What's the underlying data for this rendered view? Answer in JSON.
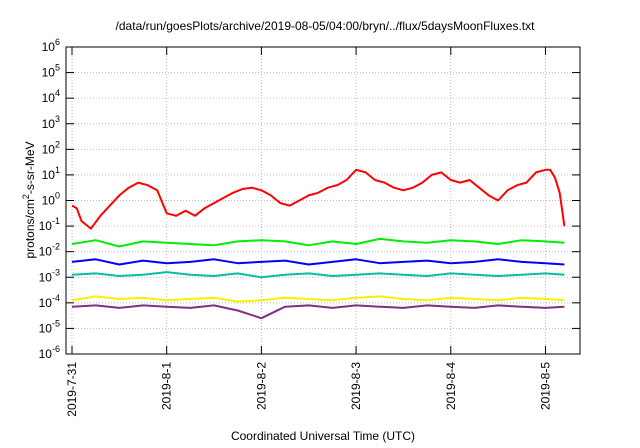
{
  "chart_data": {
    "type": "line",
    "title": "/data/run/goesPlots/archive/2019-08-05/04:00/bryn/../flux/5daysMoonFluxes.txt",
    "xlabel": "Coordinated Universal Time (UTC)",
    "ylabel": {
      "pre": "protons/cm",
      "sup": "2",
      "post": "-s-sr-MeV"
    },
    "x_ticks": [
      "2019-7-31",
      "2019-8-1",
      "2019-8-2",
      "2019-8-3",
      "2019-8-4",
      "2019-8-5"
    ],
    "x_range_days": [
      0,
      5.2
    ],
    "y_scale": "log",
    "y_ticks": [
      {
        "base": "10",
        "exp": "6"
      },
      {
        "base": "10",
        "exp": "5"
      },
      {
        "base": "10",
        "exp": "4"
      },
      {
        "base": "10",
        "exp": "3"
      },
      {
        "base": "10",
        "exp": "2"
      },
      {
        "base": "10",
        "exp": "1"
      },
      {
        "base": "10",
        "exp": "0"
      },
      {
        "base": "10",
        "exp": "-1"
      },
      {
        "base": "10",
        "exp": "-2"
      },
      {
        "base": "10",
        "exp": "-3"
      },
      {
        "base": "10",
        "exp": "-4"
      },
      {
        "base": "10",
        "exp": "-5"
      },
      {
        "base": "10",
        "exp": "-6"
      }
    ],
    "y_log_range": [
      -6,
      6
    ],
    "grid": true,
    "series": [
      {
        "color": "#ff0000",
        "x": [
          0,
          0.05,
          0.1,
          0.2,
          0.3,
          0.4,
          0.5,
          0.6,
          0.7,
          0.8,
          0.9,
          1.0,
          1.1,
          1.2,
          1.3,
          1.4,
          1.5,
          1.6,
          1.7,
          1.8,
          1.9,
          2.0,
          2.1,
          2.2,
          2.3,
          2.4,
          2.5,
          2.6,
          2.7,
          2.8,
          2.9,
          3.0,
          3.1,
          3.2,
          3.3,
          3.4,
          3.5,
          3.6,
          3.7,
          3.8,
          3.9,
          4.0,
          4.1,
          4.2,
          4.3,
          4.4,
          4.5,
          4.6,
          4.7,
          4.8,
          4.9,
          5.0,
          5.05,
          5.1,
          5.15,
          5.2
        ],
        "logy": [
          -0.2,
          -0.3,
          -0.8,
          -1.1,
          -0.6,
          -0.2,
          0.2,
          0.5,
          0.7,
          0.6,
          0.4,
          -0.5,
          -0.6,
          -0.4,
          -0.6,
          -0.3,
          -0.1,
          0.1,
          0.3,
          0.45,
          0.5,
          0.4,
          0.2,
          -0.1,
          -0.2,
          0.0,
          0.2,
          0.3,
          0.5,
          0.6,
          0.8,
          1.2,
          1.1,
          0.8,
          0.7,
          0.5,
          0.4,
          0.5,
          0.7,
          1.0,
          1.1,
          0.8,
          0.7,
          0.8,
          0.5,
          0.2,
          0.0,
          0.4,
          0.6,
          0.7,
          1.1,
          1.2,
          1.2,
          0.9,
          0.3,
          -1.0
        ]
      },
      {
        "color": "#00ee00",
        "x": [
          0,
          0.25,
          0.5,
          0.75,
          1.0,
          1.25,
          1.5,
          1.75,
          2.0,
          2.25,
          2.5,
          2.75,
          3.0,
          3.25,
          3.5,
          3.75,
          4.0,
          4.25,
          4.5,
          4.75,
          5.0,
          5.2
        ],
        "logy": [
          -1.7,
          -1.55,
          -1.8,
          -1.6,
          -1.65,
          -1.7,
          -1.75,
          -1.6,
          -1.55,
          -1.6,
          -1.75,
          -1.6,
          -1.7,
          -1.5,
          -1.6,
          -1.65,
          -1.55,
          -1.6,
          -1.7,
          -1.55,
          -1.6,
          -1.65
        ]
      },
      {
        "color": "#0000ff",
        "x": [
          0,
          0.25,
          0.5,
          0.75,
          1.0,
          1.25,
          1.5,
          1.75,
          2.0,
          2.25,
          2.5,
          2.75,
          3.0,
          3.25,
          3.5,
          3.75,
          4.0,
          4.25,
          4.5,
          4.75,
          5.0,
          5.2
        ],
        "logy": [
          -2.4,
          -2.3,
          -2.5,
          -2.35,
          -2.45,
          -2.4,
          -2.3,
          -2.45,
          -2.4,
          -2.35,
          -2.5,
          -2.4,
          -2.3,
          -2.45,
          -2.4,
          -2.35,
          -2.45,
          -2.4,
          -2.3,
          -2.4,
          -2.45,
          -2.5
        ]
      },
      {
        "color": "#00c0a0",
        "x": [
          0,
          0.25,
          0.5,
          0.75,
          1.0,
          1.25,
          1.5,
          1.75,
          2.0,
          2.25,
          2.5,
          2.75,
          3.0,
          3.25,
          3.5,
          3.75,
          4.0,
          4.25,
          4.5,
          4.75,
          5.0,
          5.2
        ],
        "logy": [
          -2.9,
          -2.85,
          -2.95,
          -2.9,
          -2.8,
          -2.9,
          -2.95,
          -2.85,
          -3.0,
          -2.9,
          -2.85,
          -2.95,
          -2.9,
          -2.85,
          -2.9,
          -2.95,
          -2.85,
          -2.9,
          -2.95,
          -2.9,
          -2.85,
          -2.9
        ]
      },
      {
        "color": "#ffee00",
        "x": [
          0,
          0.25,
          0.5,
          0.75,
          1.0,
          1.25,
          1.5,
          1.75,
          2.0,
          2.25,
          2.5,
          2.75,
          3.0,
          3.25,
          3.5,
          3.75,
          4.0,
          4.25,
          4.5,
          4.75,
          5.0,
          5.2
        ],
        "logy": [
          -3.9,
          -3.75,
          -3.85,
          -3.8,
          -3.9,
          -3.85,
          -3.8,
          -3.95,
          -3.9,
          -3.8,
          -3.85,
          -3.9,
          -3.8,
          -3.75,
          -3.85,
          -3.9,
          -3.8,
          -3.85,
          -3.9,
          -3.8,
          -3.85,
          -3.9
        ]
      },
      {
        "color": "#803080",
        "x": [
          0,
          0.25,
          0.5,
          0.75,
          1.0,
          1.25,
          1.5,
          1.75,
          2.0,
          2.25,
          2.5,
          2.75,
          3.0,
          3.25,
          3.5,
          3.75,
          4.0,
          4.25,
          4.5,
          4.75,
          5.0,
          5.2
        ],
        "logy": [
          -4.15,
          -4.1,
          -4.2,
          -4.1,
          -4.15,
          -4.2,
          -4.1,
          -4.3,
          -4.6,
          -4.15,
          -4.1,
          -4.2,
          -4.1,
          -4.15,
          -4.2,
          -4.1,
          -4.15,
          -4.2,
          -4.1,
          -4.15,
          -4.2,
          -4.15
        ]
      }
    ]
  }
}
